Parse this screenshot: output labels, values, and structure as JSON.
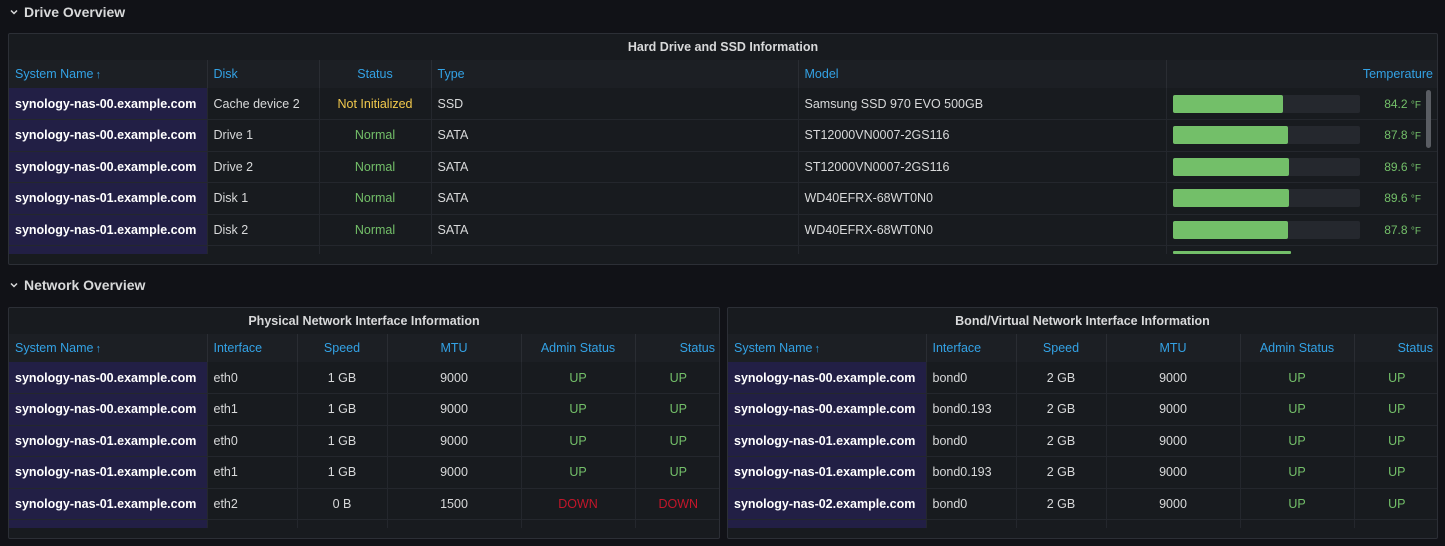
{
  "drive_row": {
    "title": "Drive Overview"
  },
  "network_row": {
    "title": "Network Overview"
  },
  "drives_panel": {
    "title": "Hard Drive and SSD Information",
    "columns": {
      "host": "System Name",
      "disk": "Disk",
      "status": "Status",
      "type": "Type",
      "model": "Model",
      "temp": "Temperature"
    },
    "sort_indicator": "↑",
    "rows": [
      {
        "host": "synology-nas-00.example.com",
        "disk": "Cache device 2",
        "status": "Not Initialized",
        "type": "SSD",
        "model": "Samsung SSD 970 EVO 500GB",
        "temp": "84.2",
        "unit": "°F",
        "temp_level": 0.59
      },
      {
        "host": "synology-nas-00.example.com",
        "disk": "Drive 1",
        "status": "Normal",
        "type": "SATA",
        "model": "ST12000VN0007-2GS116",
        "temp": "87.8",
        "unit": "°F",
        "temp_level": 0.615
      },
      {
        "host": "synology-nas-00.example.com",
        "disk": "Drive 2",
        "status": "Normal",
        "type": "SATA",
        "model": "ST12000VN0007-2GS116",
        "temp": "89.6",
        "unit": "°F",
        "temp_level": 0.625
      },
      {
        "host": "synology-nas-01.example.com",
        "disk": "Disk 1",
        "status": "Normal",
        "type": "SATA",
        "model": "WD40EFRX-68WT0N0",
        "temp": "89.6",
        "unit": "°F",
        "temp_level": 0.625
      },
      {
        "host": "synology-nas-01.example.com",
        "disk": "Disk 2",
        "status": "Normal",
        "type": "SATA",
        "model": "WD40EFRX-68WT0N0",
        "temp": "87.8",
        "unit": "°F",
        "temp_level": 0.615
      }
    ],
    "colors": {
      "status_warning": "#f2c94c",
      "status_ok": "#73bf69",
      "gauge_fill": "#73bf69"
    }
  },
  "physical_panel": {
    "title": "Physical Network Interface Information",
    "columns": {
      "host": "System Name",
      "iface": "Interface",
      "speed": "Speed",
      "mtu": "MTU",
      "admin": "Admin Status",
      "status": "Status"
    },
    "sort_indicator": "↑",
    "rows": [
      {
        "host": "synology-nas-00.example.com",
        "iface": "eth0",
        "speed": "1 GB",
        "mtu": "9000",
        "admin": "UP",
        "status": "UP"
      },
      {
        "host": "synology-nas-00.example.com",
        "iface": "eth1",
        "speed": "1 GB",
        "mtu": "9000",
        "admin": "UP",
        "status": "UP"
      },
      {
        "host": "synology-nas-01.example.com",
        "iface": "eth0",
        "speed": "1 GB",
        "mtu": "9000",
        "admin": "UP",
        "status": "UP"
      },
      {
        "host": "synology-nas-01.example.com",
        "iface": "eth1",
        "speed": "1 GB",
        "mtu": "9000",
        "admin": "UP",
        "status": "UP"
      },
      {
        "host": "synology-nas-01.example.com",
        "iface": "eth2",
        "speed": "0 B",
        "mtu": "1500",
        "admin": "DOWN",
        "status": "DOWN"
      }
    ]
  },
  "bond_panel": {
    "title": "Bond/Virtual Network Interface Information",
    "columns": {
      "host": "System Name",
      "iface": "Interface",
      "speed": "Speed",
      "mtu": "MTU",
      "admin": "Admin Status",
      "status": "Status"
    },
    "sort_indicator": "↑",
    "rows": [
      {
        "host": "synology-nas-00.example.com",
        "iface": "bond0",
        "speed": "2 GB",
        "mtu": "9000",
        "admin": "UP",
        "status": "UP"
      },
      {
        "host": "synology-nas-00.example.com",
        "iface": "bond0.193",
        "speed": "2 GB",
        "mtu": "9000",
        "admin": "UP",
        "status": "UP"
      },
      {
        "host": "synology-nas-01.example.com",
        "iface": "bond0",
        "speed": "2 GB",
        "mtu": "9000",
        "admin": "UP",
        "status": "UP"
      },
      {
        "host": "synology-nas-01.example.com",
        "iface": "bond0.193",
        "speed": "2 GB",
        "mtu": "9000",
        "admin": "UP",
        "status": "UP"
      },
      {
        "host": "synology-nas-02.example.com",
        "iface": "bond0",
        "speed": "2 GB",
        "mtu": "9000",
        "admin": "UP",
        "status": "UP"
      }
    ]
  }
}
